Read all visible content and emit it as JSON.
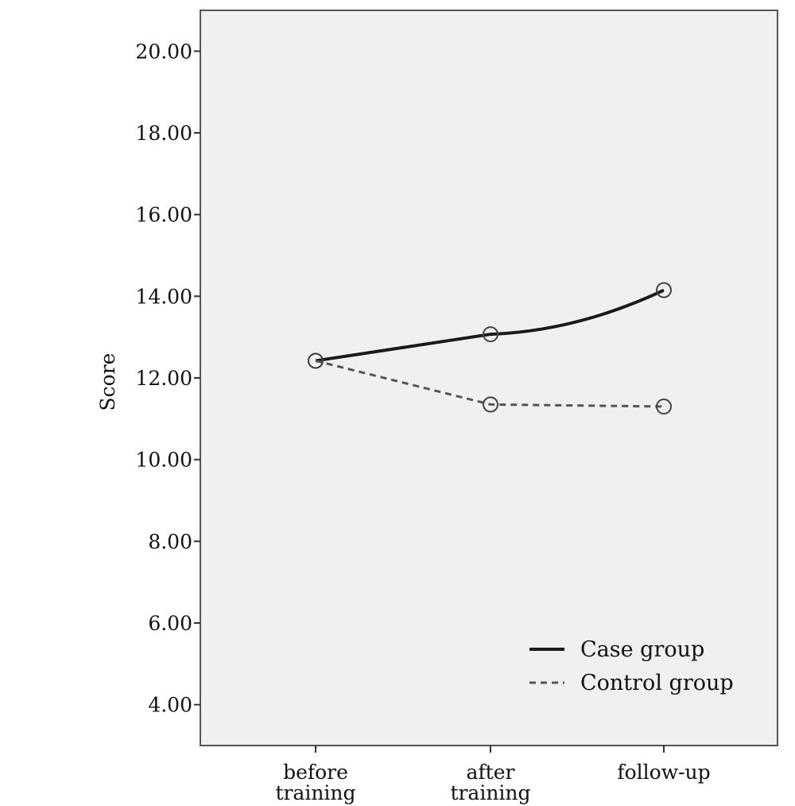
{
  "chart_data": {
    "type": "line",
    "title": "",
    "xlabel": "",
    "ylabel": "Score",
    "categories": [
      [
        "before",
        "training"
      ],
      [
        "after",
        "training"
      ],
      [
        "follow-up"
      ]
    ],
    "ylim": [
      3.0,
      21.0
    ],
    "yticks": [
      4.0,
      6.0,
      8.0,
      10.0,
      12.0,
      14.0,
      16.0,
      18.0,
      20.0
    ],
    "ytick_labels": [
      "4.00",
      "6.00",
      "8.00",
      "10.00",
      "12.00",
      "14.00",
      "16.00",
      "18.00",
      "20.00"
    ],
    "grid": false,
    "legend_position": "bottom-right",
    "series": [
      {
        "name": "Case group",
        "values": [
          12.42,
          13.07,
          14.15
        ],
        "line_style": "solid",
        "color": "#1a1a1a"
      },
      {
        "name": "Control group",
        "values": [
          12.42,
          11.35,
          11.3
        ],
        "line_style": "dashed",
        "color": "#555555"
      }
    ],
    "colors": {
      "plot_background": "#f0f0f0",
      "frame": "#555555"
    }
  }
}
